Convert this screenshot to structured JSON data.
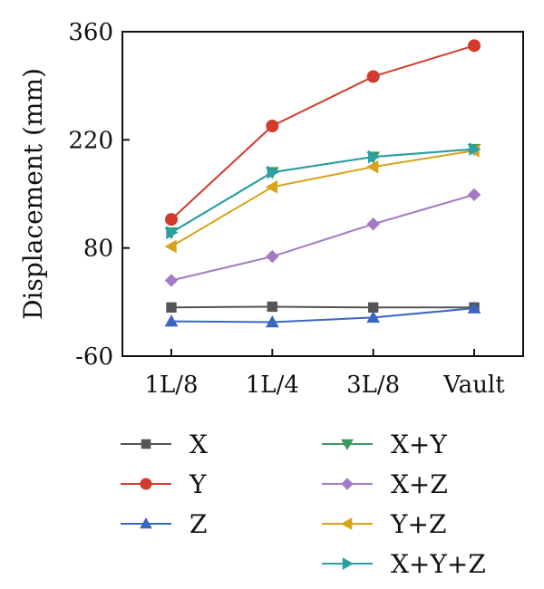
{
  "chart_data": {
    "type": "line",
    "title": "",
    "xlabel": "",
    "ylabel": "Displacement (mm)",
    "categories": [
      "1L/8",
      "1L/4",
      "3L/8",
      "Vault"
    ],
    "ylim": [
      -60,
      360
    ],
    "yticks": [
      "-60",
      "80",
      "220",
      "360"
    ],
    "grid": false,
    "legend_position": "bottom",
    "series": [
      {
        "name": "X",
        "color": "#555555",
        "marker": "square",
        "values": [
          3,
          4,
          3,
          3
        ]
      },
      {
        "name": "Y",
        "color": "#d13a2c",
        "marker": "circle",
        "values": [
          117,
          238,
          302,
          342
        ]
      },
      {
        "name": "Z",
        "color": "#3a66c0",
        "marker": "triangle-up",
        "values": [
          -15,
          -16,
          -10,
          2
        ]
      },
      {
        "name": "X+Y",
        "color": "#3a9a5a",
        "marker": "triangle-down",
        "values": [
          ": null",
          "",
          "",
          ""
        ]
      },
      {
        "name": "X+Z",
        "color": "#a57ac4",
        "marker": "diamond",
        "values": [
          38,
          69,
          111,
          149
        ]
      },
      {
        "name": "Y+Z",
        "color": "#d9a21a",
        "marker": "triangle-left",
        "values": [
          82,
          159,
          185,
          206
        ]
      },
      {
        "name": "X+Y+Z",
        "color": "#2aa0a5",
        "marker": "triangle-right",
        "values": [
          100,
          178,
          198,
          208
        ]
      }
    ]
  }
}
